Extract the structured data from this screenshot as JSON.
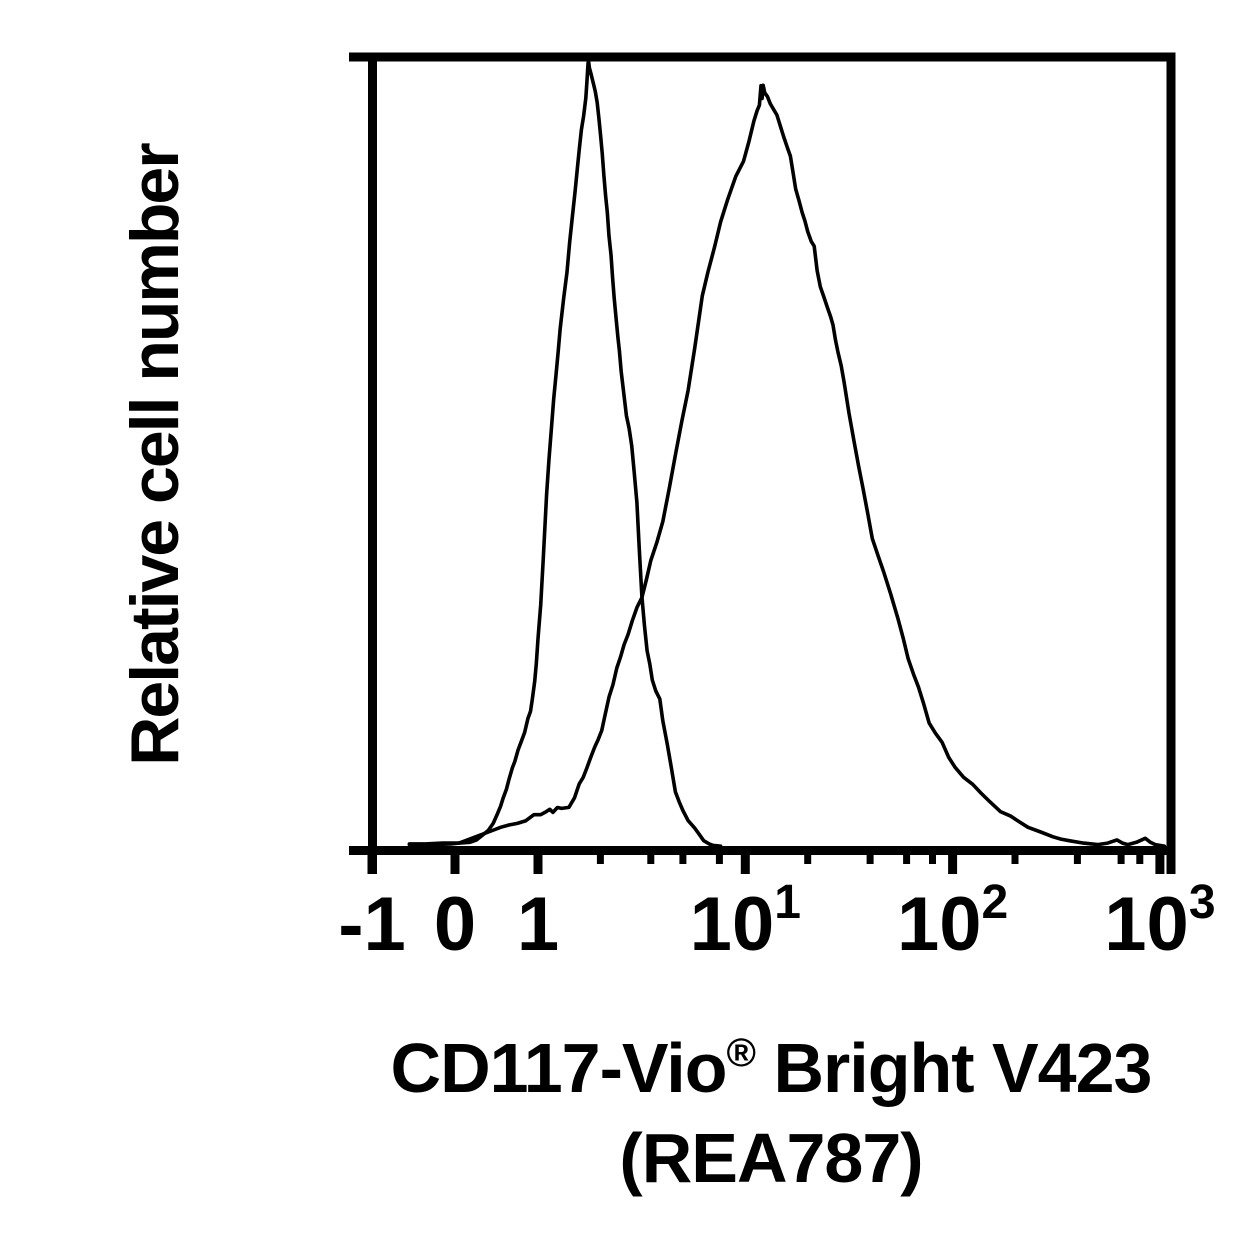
{
  "page": {
    "background": "#ffffff"
  },
  "colors": {
    "ink": "#000000",
    "curve": "#000000"
  },
  "y_axis": {
    "label": "Relative cell number"
  },
  "x_axis": {
    "title_part1": "CD117-Vio",
    "title_reg": "®",
    "title_part2": " Bright V423",
    "title_line2": "(REA787)",
    "major_ticks": [
      {
        "value": -1,
        "base": "-1",
        "sup": ""
      },
      {
        "value": 0,
        "base": "0",
        "sup": ""
      },
      {
        "value": 1,
        "base": "1",
        "sup": ""
      },
      {
        "value": 10,
        "base": "10",
        "sup": "1"
      },
      {
        "value": 100,
        "base": "10",
        "sup": "2"
      },
      {
        "value": 1000,
        "base": "10",
        "sup": "3"
      }
    ],
    "minor_tick_values": [
      2,
      3.5,
      5,
      7.5,
      20,
      40,
      60,
      80,
      200,
      400,
      650,
      800
    ]
  },
  "chart_data": {
    "type": "line",
    "title": "",
    "xlabel": "CD117-Vio® Bright V423 (REA787)",
    "ylabel": "Relative cell number",
    "grid": false,
    "legend": null,
    "x_scale": {
      "type": "biexponential",
      "linear_range": [
        -1,
        1
      ],
      "log_range": [
        1,
        1000
      ]
    },
    "y_range_pct": [
      0,
      100
    ],
    "series": [
      {
        "name": "left-histogram-control",
        "peak_x": 1.75,
        "peak_height_pct": 100,
        "points": [
          [
            -0.55,
            0.4
          ],
          [
            -0.35,
            0.4
          ],
          [
            -0.15,
            0.5
          ],
          [
            0.05,
            0.5
          ],
          [
            0.18,
            0.6
          ],
          [
            0.26,
            0.9
          ],
          [
            0.33,
            1.5
          ],
          [
            0.4,
            2.1
          ],
          [
            0.46,
            3.0
          ],
          [
            0.51,
            4.0
          ],
          [
            0.55,
            5.2
          ],
          [
            0.58,
            6.4
          ],
          [
            0.62,
            7.5
          ],
          [
            0.65,
            8.6
          ],
          [
            0.69,
            9.8
          ],
          [
            0.72,
            11.0
          ],
          [
            0.76,
            12.2
          ],
          [
            0.8,
            13.3
          ],
          [
            0.84,
            14.8
          ],
          [
            0.88,
            16.2
          ],
          [
            0.91,
            17.4
          ],
          [
            0.93,
            18.7
          ],
          [
            0.96,
            21.0
          ],
          [
            0.98,
            23.5
          ],
          [
            1.0,
            26.3
          ],
          [
            1.03,
            31.0
          ],
          [
            1.06,
            36.5
          ],
          [
            1.1,
            45.0
          ],
          [
            1.13,
            49.5
          ],
          [
            1.16,
            53.4
          ],
          [
            1.19,
            56.8
          ],
          [
            1.22,
            60.0
          ],
          [
            1.25,
            63.0
          ],
          [
            1.28,
            66.0
          ],
          [
            1.33,
            70.0
          ],
          [
            1.38,
            73.3
          ],
          [
            1.42,
            76.6
          ],
          [
            1.46,
            80.0
          ],
          [
            1.51,
            83.5
          ],
          [
            1.55,
            86.5
          ],
          [
            1.58,
            88.8
          ],
          [
            1.62,
            91.0
          ],
          [
            1.66,
            93.0
          ],
          [
            1.7,
            95.2
          ],
          [
            1.72,
            97.0
          ],
          [
            1.74,
            99.3
          ],
          [
            1.75,
            100.0
          ],
          [
            1.77,
            99.0
          ],
          [
            1.8,
            98.3
          ],
          [
            1.85,
            97.0
          ],
          [
            1.89,
            95.8
          ],
          [
            1.93,
            94.5
          ],
          [
            1.97,
            92.6
          ],
          [
            2.0,
            90.7
          ],
          [
            2.04,
            88.0
          ],
          [
            2.08,
            85.5
          ],
          [
            2.12,
            83.0
          ],
          [
            2.16,
            80.5
          ],
          [
            2.2,
            77.8
          ],
          [
            2.25,
            75.0
          ],
          [
            2.29,
            72.3
          ],
          [
            2.33,
            69.5
          ],
          [
            2.38,
            67.3
          ],
          [
            2.43,
            65.0
          ],
          [
            2.47,
            62.8
          ],
          [
            2.52,
            60.5
          ],
          [
            2.59,
            57.8
          ],
          [
            2.67,
            55.0
          ],
          [
            2.75,
            53.0
          ],
          [
            2.83,
            51.0
          ],
          [
            2.91,
            47.5
          ],
          [
            3.0,
            44.0
          ],
          [
            3.08,
            38.0
          ],
          [
            3.17,
            31.6
          ],
          [
            3.26,
            28.2
          ],
          [
            3.36,
            25.0
          ],
          [
            3.46,
            23.0
          ],
          [
            3.56,
            21.0
          ],
          [
            3.7,
            19.8
          ],
          [
            3.87,
            18.6
          ],
          [
            4.0,
            15.8
          ],
          [
            4.2,
            12.9
          ],
          [
            4.4,
            10.0
          ],
          [
            4.6,
            7.2
          ],
          [
            4.8,
            5.6
          ],
          [
            5.0,
            4.4
          ],
          [
            5.3,
            3.3
          ],
          [
            5.7,
            2.4
          ],
          [
            6.0,
            1.6
          ],
          [
            6.3,
            0.8
          ],
          [
            6.7,
            0.4
          ],
          [
            7.0,
            0.2
          ],
          [
            7.6,
            0.1
          ]
        ]
      },
      {
        "name": "right-histogram-stained",
        "peak_x": 12,
        "peak_height_pct": 97,
        "points": [
          [
            -0.55,
            0.3
          ],
          [
            -0.3,
            0.3
          ],
          [
            -0.05,
            0.4
          ],
          [
            0.05,
            0.5
          ],
          [
            0.15,
            0.9
          ],
          [
            0.3,
            1.5
          ],
          [
            0.45,
            2.1
          ],
          [
            0.55,
            2.5
          ],
          [
            0.65,
            2.8
          ],
          [
            0.75,
            3.0
          ],
          [
            0.85,
            3.5
          ],
          [
            0.95,
            3.9
          ],
          [
            1.03,
            4.1
          ],
          [
            1.1,
            4.4
          ],
          [
            1.14,
            5.0
          ],
          [
            1.18,
            4.6
          ],
          [
            1.24,
            4.8
          ],
          [
            1.3,
            4.9
          ],
          [
            1.41,
            5.1
          ],
          [
            1.5,
            6.0
          ],
          [
            1.58,
            7.8
          ],
          [
            1.65,
            8.8
          ],
          [
            1.72,
            9.8
          ],
          [
            1.8,
            11.2
          ],
          [
            1.88,
            12.5
          ],
          [
            1.95,
            13.6
          ],
          [
            2.03,
            15.0
          ],
          [
            2.1,
            16.5
          ],
          [
            2.2,
            18.8
          ],
          [
            2.3,
            20.6
          ],
          [
            2.4,
            22.5
          ],
          [
            2.5,
            24.0
          ],
          [
            2.6,
            25.5
          ],
          [
            2.72,
            27.2
          ],
          [
            2.85,
            28.8
          ],
          [
            3.0,
            30.2
          ],
          [
            3.17,
            31.6
          ],
          [
            3.33,
            34.0
          ],
          [
            3.5,
            36.5
          ],
          [
            3.75,
            39.0
          ],
          [
            4.0,
            41.5
          ],
          [
            4.3,
            45.5
          ],
          [
            4.6,
            49.6
          ],
          [
            4.95,
            54.0
          ],
          [
            5.3,
            58.0
          ],
          [
            5.7,
            63.5
          ],
          [
            6.2,
            70.0
          ],
          [
            6.6,
            73.0
          ],
          [
            7.1,
            76.3
          ],
          [
            7.6,
            79.2
          ],
          [
            8.2,
            82.2
          ],
          [
            9.0,
            85.0
          ],
          [
            9.8,
            87.3
          ],
          [
            10.4,
            89.5
          ],
          [
            11.0,
            92.0
          ],
          [
            11.4,
            93.5
          ],
          [
            11.7,
            94.2
          ],
          [
            11.9,
            96.5
          ],
          [
            12.05,
            95.0
          ],
          [
            12.2,
            96.8
          ],
          [
            12.4,
            95.9
          ],
          [
            12.8,
            95.3
          ],
          [
            13.2,
            94.3
          ],
          [
            14.2,
            93.0
          ],
          [
            15.3,
            90.2
          ],
          [
            16.0,
            89.0
          ],
          [
            16.5,
            88.0
          ],
          [
            17.0,
            85.5
          ],
          [
            17.5,
            83.8
          ],
          [
            18.2,
            82.0
          ],
          [
            18.8,
            80.9
          ],
          [
            19.4,
            79.4
          ],
          [
            20.0,
            78.0
          ],
          [
            20.8,
            77.0
          ],
          [
            21.5,
            76.2
          ],
          [
            22.2,
            73.5
          ],
          [
            23.0,
            71.0
          ],
          [
            24.0,
            69.6
          ],
          [
            25.0,
            68.3
          ],
          [
            25.8,
            67.3
          ],
          [
            26.5,
            66.3
          ],
          [
            27.2,
            64.6
          ],
          [
            28.0,
            63.0
          ],
          [
            29.0,
            61.0
          ],
          [
            30.0,
            59.0
          ],
          [
            31.6,
            55.4
          ],
          [
            33.5,
            51.7
          ],
          [
            35.2,
            48.5
          ],
          [
            37.0,
            45.3
          ],
          [
            39.0,
            42.2
          ],
          [
            41.0,
            39.3
          ],
          [
            43.6,
            37.0
          ],
          [
            46.5,
            34.7
          ],
          [
            50.3,
            32.0
          ],
          [
            54.5,
            29.2
          ],
          [
            57.7,
            26.5
          ],
          [
            61.0,
            23.8
          ],
          [
            64.6,
            22.0
          ],
          [
            68.5,
            20.3
          ],
          [
            72.6,
            18.0
          ],
          [
            77.0,
            15.8
          ],
          [
            82.7,
            14.5
          ],
          [
            89.0,
            13.2
          ],
          [
            95.8,
            11.6
          ],
          [
            103,
            10.1
          ],
          [
            113,
            9.1
          ],
          [
            125,
            8.1
          ],
          [
            137,
            6.8
          ],
          [
            151,
            5.6
          ],
          [
            170,
            4.7
          ],
          [
            191,
            3.8
          ],
          [
            210,
            3.1
          ],
          [
            231,
            2.5
          ],
          [
            266,
            1.9
          ],
          [
            305,
            1.3
          ],
          [
            333,
            1.0
          ],
          [
            365,
            0.8
          ],
          [
            428,
            0.5
          ],
          [
            500,
            0.3
          ],
          [
            560,
            0.5
          ],
          [
            620,
            0.9
          ],
          [
            660,
            0.5
          ],
          [
            700,
            0.3
          ],
          [
            770,
            0.6
          ],
          [
            850,
            1.1
          ],
          [
            900,
            0.6
          ],
          [
            950,
            0.3
          ],
          [
            1000,
            0.2
          ],
          [
            1050,
            0.1
          ]
        ]
      }
    ]
  }
}
